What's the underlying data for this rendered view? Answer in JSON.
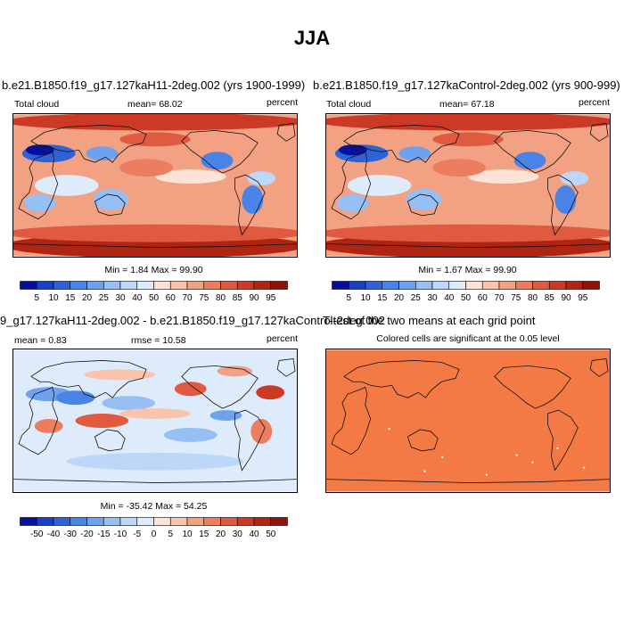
{
  "title": "JJA",
  "panels": [
    {
      "title": "b.e21.B1850.f19_g17.127kaH11-2deg.002 (yrs 1900-1999)",
      "left_label": "Total cloud",
      "center_label": "mean=  68.02",
      "right_label": "percent",
      "minmax": "Min =   1.84 Max =  99.90"
    },
    {
      "title": "b.e21.B1850.f19_g17.127kaControl-2deg.002 (yrs 900-999)",
      "left_label": "Total cloud",
      "center_label": "mean=  67.18",
      "right_label": "percent",
      "minmax": "Min =   1.67 Max =  99.90"
    },
    {
      "title": "9_g17.127kaH11-2deg.002 - b.e21.B1850.f19_g17.127kaControl-2deg.002",
      "left_label": "mean =   0.83",
      "center_label": "rmse =  10.58",
      "right_label": "percent",
      "minmax": "Min = -35.42 Max =  54.25"
    },
    {
      "title": "T-test of the two means at each grid point",
      "subtitle": "Colored cells are significant at the 0.05 level"
    }
  ],
  "colorbars": {
    "absolute": {
      "labels": [
        "5",
        "10",
        "15",
        "20",
        "25",
        "30",
        "40",
        "50",
        "60",
        "70",
        "75",
        "80",
        "85",
        "90",
        "95"
      ],
      "colors": [
        "#06109b",
        "#1a3fc4",
        "#2e63d8",
        "#4a83e6",
        "#6ea2ef",
        "#96bff5",
        "#bdd7f8",
        "#deebfa",
        "#fde3d5",
        "#f9c4ab",
        "#f3a183",
        "#ec7e5f",
        "#e05a3f",
        "#cc3a26",
        "#b02414",
        "#8f1309"
      ]
    },
    "difference": {
      "labels": [
        "-50",
        "-40",
        "-30",
        "-20",
        "-15",
        "-10",
        "-5",
        "0",
        "5",
        "10",
        "15",
        "20",
        "30",
        "40",
        "50"
      ],
      "colors": [
        "#06109b",
        "#1a3fc4",
        "#2e63d8",
        "#4a83e6",
        "#6ea2ef",
        "#96bff5",
        "#bdd7f8",
        "#deebfa",
        "#fde3d5",
        "#f9c4ab",
        "#f3a183",
        "#ec7e5f",
        "#e05a3f",
        "#cc3a26",
        "#b02414",
        "#8f1309"
      ]
    }
  },
  "significance_color": "#f37a45"
}
